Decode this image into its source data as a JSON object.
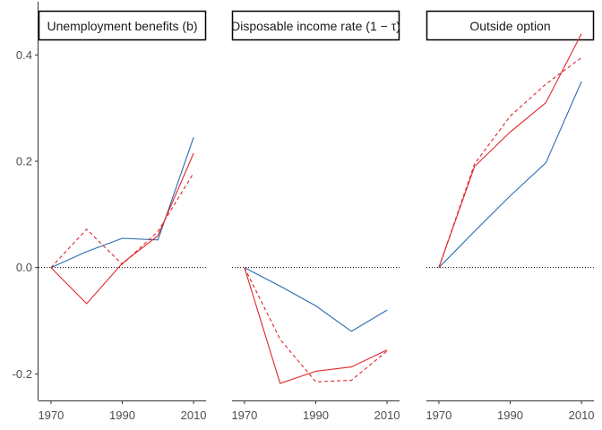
{
  "chart_data": [
    {
      "type": "line",
      "title": "Unemployment benefits (b)",
      "x": [
        1970,
        1980,
        1990,
        2000,
        2010
      ],
      "xticks": [
        1970,
        1990,
        2010
      ],
      "ylim": [
        -0.25,
        0.5
      ],
      "yticks": [
        -0.2,
        0.0,
        0.2,
        0.4
      ],
      "ytick_labels": [
        "-0.2",
        "0.0",
        "0.2",
        "0.4"
      ],
      "reference_line": 0,
      "series": [
        {
          "color": "#2b6cb0",
          "style": "solid",
          "values": [
            0.0,
            0.03,
            0.055,
            0.052,
            0.245
          ]
        },
        {
          "color": "#e0262a",
          "style": "solid",
          "values": [
            0.0,
            -0.068,
            0.008,
            0.06,
            0.215
          ]
        },
        {
          "color": "#e0262a",
          "style": "dashed",
          "values": [
            0.0,
            0.072,
            0.006,
            0.068,
            0.178
          ]
        }
      ]
    },
    {
      "type": "line",
      "title": "Disposable income rate (1 − τ)",
      "x": [
        1970,
        1980,
        1990,
        2000,
        2010
      ],
      "xticks": [
        1970,
        1990,
        2010
      ],
      "ylim": [
        -0.25,
        0.5
      ],
      "reference_line": 0,
      "series": [
        {
          "color": "#2b6cb0",
          "style": "solid",
          "values": [
            0.0,
            -0.035,
            -0.072,
            -0.12,
            -0.08
          ]
        },
        {
          "color": "#e0262a",
          "style": "solid",
          "values": [
            0.0,
            -0.218,
            -0.195,
            -0.187,
            -0.155
          ]
        },
        {
          "color": "#e0262a",
          "style": "dashed",
          "values": [
            0.0,
            -0.135,
            -0.215,
            -0.212,
            -0.157
          ]
        }
      ]
    },
    {
      "type": "line",
      "title": "Outside option",
      "x": [
        1970,
        1980,
        1990,
        2000,
        2010
      ],
      "xticks": [
        1970,
        1990,
        2010
      ],
      "ylim": [
        -0.25,
        0.5
      ],
      "reference_line": 0,
      "series": [
        {
          "color": "#2b6cb0",
          "style": "solid",
          "values": [
            0.0,
            0.068,
            0.135,
            0.197,
            0.35
          ]
        },
        {
          "color": "#e0262a",
          "style": "solid",
          "values": [
            0.0,
            0.19,
            0.255,
            0.31,
            0.44
          ]
        },
        {
          "color": "#e0262a",
          "style": "dashed",
          "values": [
            0.0,
            0.195,
            0.285,
            0.345,
            0.395
          ]
        }
      ]
    }
  ]
}
